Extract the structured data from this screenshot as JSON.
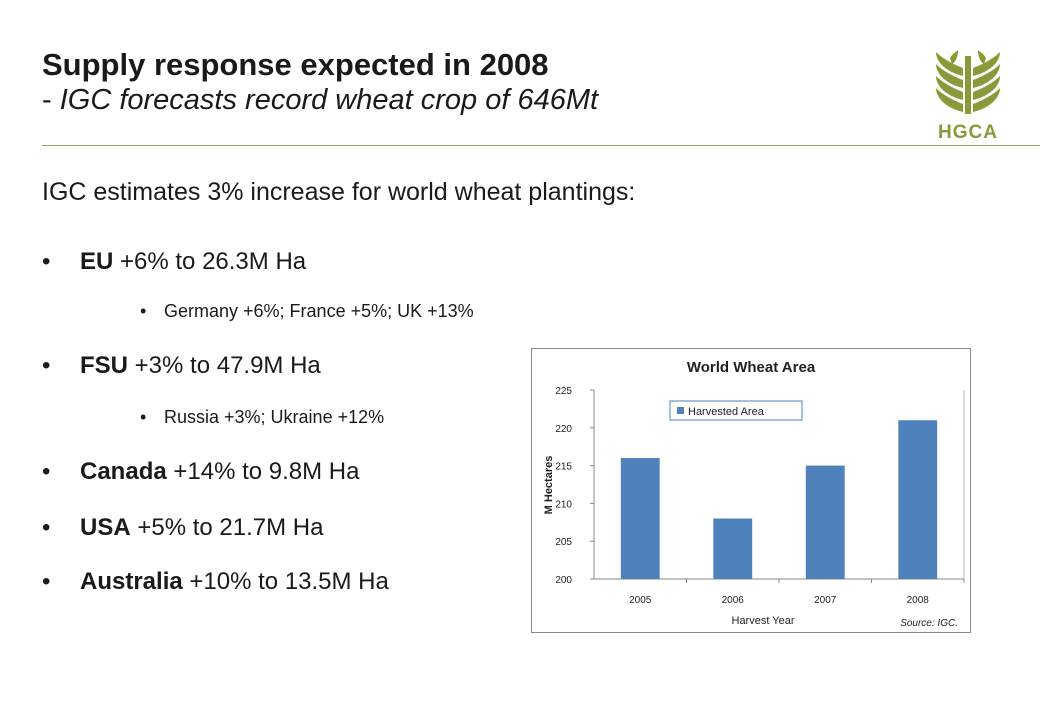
{
  "slide": {
    "title": "Supply response expected in 2008",
    "subtitle_dash": "- ",
    "subtitle": "IGC forecasts record wheat crop of 646Mt",
    "logo_text": "HGCA",
    "intro": "IGC estimates 3% increase for world wheat plantings:",
    "bullets": [
      {
        "bold": "EU",
        "text": " +6% to 26.3M Ha"
      },
      {
        "sub": "Germany +6%; France +5%; UK +13%"
      },
      {
        "bold": "FSU",
        "text": " +3% to 47.9M Ha"
      },
      {
        "sub": "Russia +3%; Ukraine +12%"
      },
      {
        "bold": "Canada",
        "text": " +14% to 9.8M Ha"
      },
      {
        "bold": "USA",
        "text": " +5% to 21.7M Ha"
      },
      {
        "bold": "Australia",
        "text": " +10% to 13.5M Ha"
      }
    ],
    "bullet_glyph": "•"
  },
  "colors": {
    "accent": "#8a9a3b",
    "bar": "#4f81bd",
    "rule": "#9aa36a"
  },
  "chart_data": {
    "type": "bar",
    "title": "World Wheat Area",
    "xlabel": "Harvest Year",
    "ylabel": "M Hectares",
    "categories": [
      "2005",
      "2006",
      "2007",
      "2008"
    ],
    "series": [
      {
        "name": "Harvested Area",
        "values": [
          216,
          208,
          215,
          221
        ]
      }
    ],
    "ylim": [
      200,
      225
    ],
    "yticks": [
      "200",
      "205",
      "210",
      "215",
      "220",
      "225"
    ],
    "legend_position": "top-left",
    "source": "Source: IGC.",
    "grid": false
  }
}
